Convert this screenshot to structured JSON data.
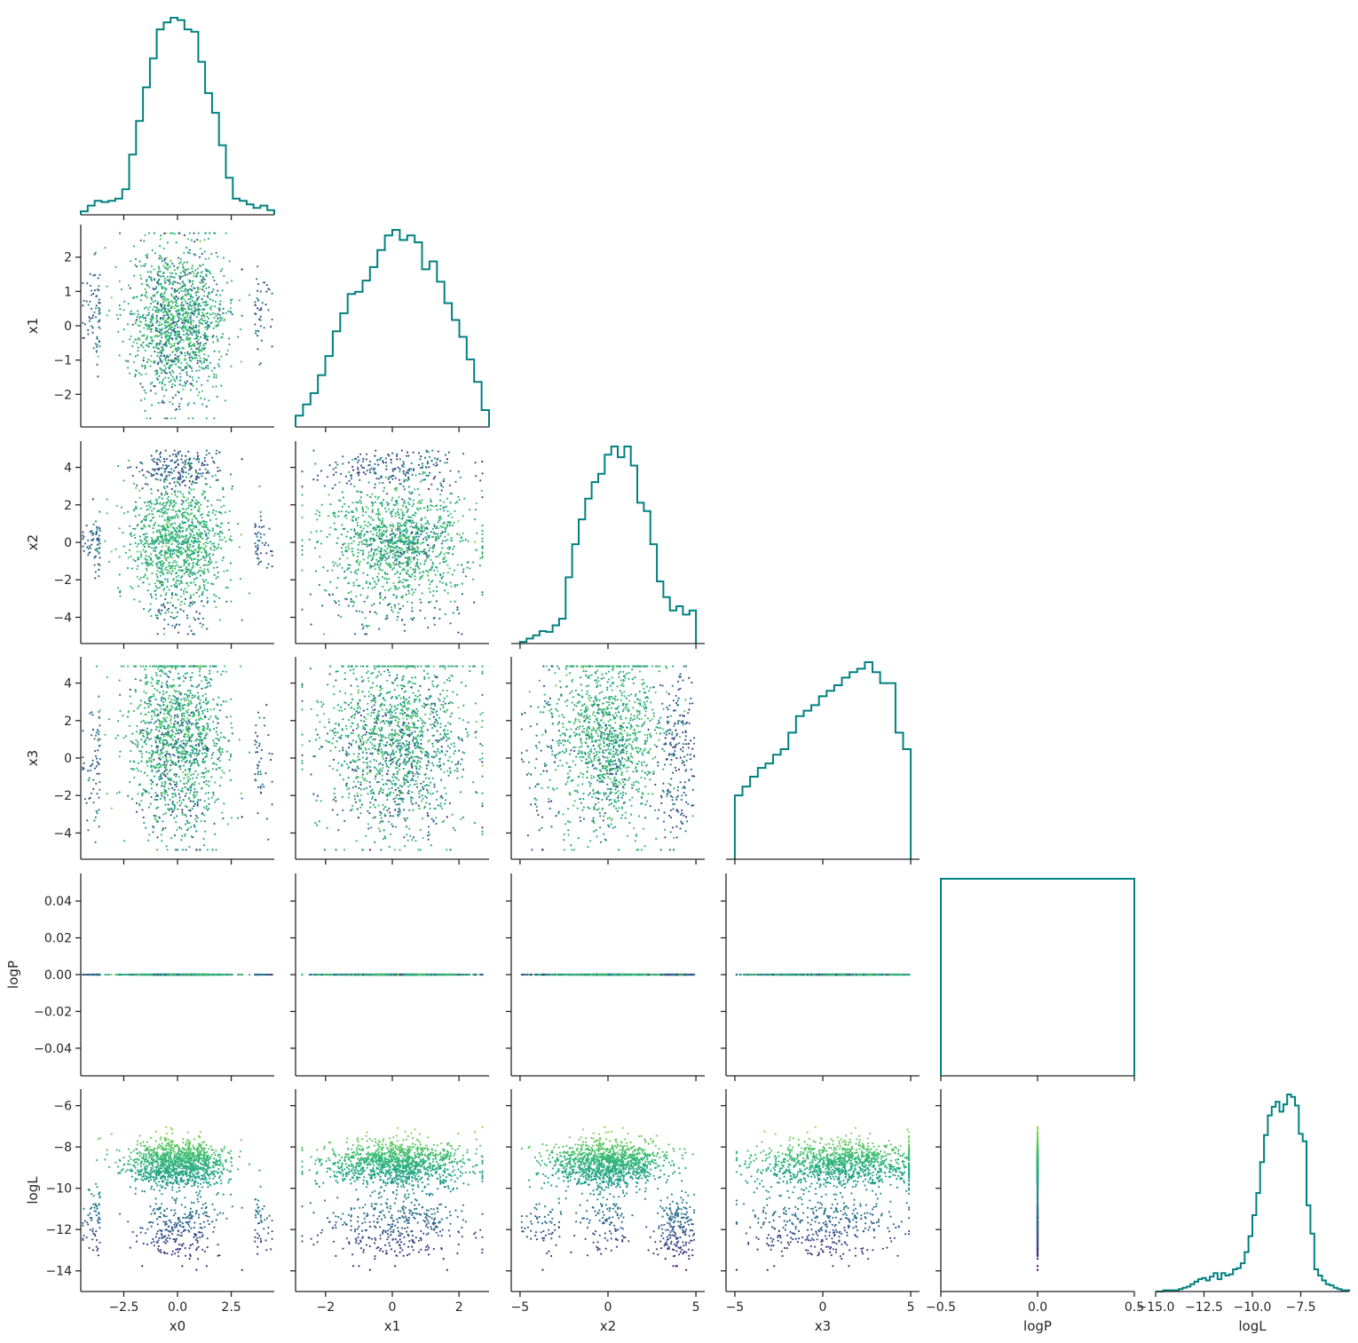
{
  "chart_data": {
    "type": "scatter",
    "title": "",
    "variables": [
      "x0",
      "x1",
      "x2",
      "x3",
      "logP",
      "logL"
    ],
    "axis_labels": {
      "x0": "x0",
      "x1": "x1",
      "x2": "x2",
      "x3": "x3",
      "logP": "logP",
      "logL": "logL"
    },
    "ranges": {
      "x0": [
        -4.5,
        4.5
      ],
      "x1": [
        -2.9,
        2.9
      ],
      "x2": [
        -5.5,
        5.5
      ],
      "x3": [
        -5.5,
        5.5
      ],
      "logP": [
        -0.5,
        0.5
      ],
      "logL": [
        -15.0,
        -5.0
      ]
    },
    "y_ranges": {
      "x1": [
        -2.95,
        2.95
      ],
      "x2": [
        -5.4,
        5.4
      ],
      "x3": [
        -5.4,
        5.4
      ],
      "logP": [
        -0.055,
        0.055
      ],
      "logL": [
        -15.0,
        -5.2
      ]
    },
    "x_ticks": {
      "x0": [
        {
          "v": -2.5,
          "t": "−2.5"
        },
        {
          "v": 0,
          "t": "0.0"
        },
        {
          "v": 2.5,
          "t": "2.5"
        }
      ],
      "x1": [
        {
          "v": -2,
          "t": "−2"
        },
        {
          "v": 0,
          "t": "0"
        },
        {
          "v": 2,
          "t": "2"
        }
      ],
      "x2": [
        {
          "v": -5,
          "t": "−5"
        },
        {
          "v": 0,
          "t": "0"
        },
        {
          "v": 5,
          "t": "5"
        }
      ],
      "x3": [
        {
          "v": -5,
          "t": "−5"
        },
        {
          "v": 0,
          "t": "0"
        },
        {
          "v": 5,
          "t": "5"
        }
      ],
      "logP": [
        {
          "v": -0.5,
          "t": "−0.5"
        },
        {
          "v": 0,
          "t": "0.0"
        },
        {
          "v": 0.5,
          "t": "0.5"
        }
      ],
      "logL": [
        {
          "v": -15,
          "t": "−15.0"
        },
        {
          "v": -12.5,
          "t": "−12.5"
        },
        {
          "v": -10,
          "t": "−10.0"
        },
        {
          "v": -7.5,
          "t": "−7.5"
        }
      ]
    },
    "y_ticks": {
      "x1": [
        {
          "v": 2,
          "t": "2"
        },
        {
          "v": 1,
          "t": "1"
        },
        {
          "v": 0,
          "t": "0"
        },
        {
          "v": -1,
          "t": "−1"
        },
        {
          "v": -2,
          "t": "−2"
        }
      ],
      "x2": [
        {
          "v": 4,
          "t": "4"
        },
        {
          "v": 2,
          "t": "2"
        },
        {
          "v": 0,
          "t": "0"
        },
        {
          "v": -2,
          "t": "−2"
        },
        {
          "v": -4,
          "t": "−4"
        }
      ],
      "x3": [
        {
          "v": 4,
          "t": "4"
        },
        {
          "v": 2,
          "t": "2"
        },
        {
          "v": 0,
          "t": "0"
        },
        {
          "v": -2,
          "t": "−2"
        },
        {
          "v": -4,
          "t": "−4"
        }
      ],
      "logP": [
        {
          "v": 0.04,
          "t": "0.04"
        },
        {
          "v": 0.02,
          "t": "0.02"
        },
        {
          "v": 0,
          "t": "0.00"
        },
        {
          "v": -0.02,
          "t": "−0.02"
        },
        {
          "v": -0.04,
          "t": "−0.04"
        }
      ],
      "logL": [
        {
          "v": -6,
          "t": "−6"
        },
        {
          "v": -8,
          "t": "−8"
        },
        {
          "v": -10,
          "t": "−10"
        },
        {
          "v": -12,
          "t": "−12"
        },
        {
          "v": -14,
          "t": "−14"
        }
      ]
    },
    "marginals": {
      "x0": {
        "range": [
          -4.5,
          4.5
        ],
        "counts": [
          3,
          8,
          12,
          11,
          12,
          14,
          22,
          52,
          81,
          110,
          135,
          160,
          166,
          170,
          168,
          160,
          158,
          132,
          105,
          88,
          60,
          32,
          14,
          12,
          9,
          6,
          8,
          4
        ]
      },
      "x1": {
        "range": [
          -2.9,
          2.9
        ],
        "counts": [
          10,
          20,
          30,
          46,
          63,
          85,
          101,
          118,
          120,
          130,
          142,
          157,
          170,
          175,
          166,
          170,
          164,
          140,
          147,
          129,
          110,
          95,
          80,
          60,
          40,
          15
        ]
      },
      "x2": {
        "range": [
          -5.0,
          5.0
        ],
        "counts": [
          2,
          6,
          10,
          15,
          14,
          22,
          30,
          80,
          120,
          150,
          175,
          195,
          205,
          228,
          238,
          225,
          238,
          215,
          170,
          160,
          120,
          75,
          56,
          40,
          45,
          35,
          40
        ]
      },
      "x3": {
        "range": [
          -5.0,
          5.0
        ],
        "counts": [
          58,
          66,
          75,
          83,
          87,
          95,
          100,
          115,
          130,
          135,
          140,
          148,
          153,
          158,
          165,
          170,
          173,
          179,
          170,
          160,
          160,
          115,
          100
        ]
      },
      "logP": {
        "range": [
          -0.5,
          0.5
        ],
        "counts": [
          1
        ]
      },
      "logL": {
        "range": [
          -15.0,
          -5.0
        ],
        "counts": [
          0,
          0,
          1,
          1,
          1,
          1,
          2,
          3,
          4,
          6,
          8,
          10,
          11,
          9,
          12,
          15,
          10,
          15,
          13,
          14,
          18,
          19,
          23,
          32,
          45,
          62,
          80,
          105,
          127,
          143,
          150,
          154,
          146,
          152,
          160,
          158,
          151,
          128,
          122,
          70,
          47,
          18,
          13,
          9,
          6,
          5,
          3,
          2,
          1,
          1
        ]
      }
    },
    "scatter_pairs": [
      {
        "x": "x0",
        "y": "x1"
      },
      {
        "x": "x0",
        "y": "x2"
      },
      {
        "x": "x1",
        "y": "x2"
      },
      {
        "x": "x0",
        "y": "x3"
      },
      {
        "x": "x1",
        "y": "x3"
      },
      {
        "x": "x2",
        "y": "x3"
      },
      {
        "x": "x0",
        "y": "logP"
      },
      {
        "x": "x1",
        "y": "logP"
      },
      {
        "x": "x2",
        "y": "logP"
      },
      {
        "x": "x3",
        "y": "logP"
      },
      {
        "x": "x0",
        "y": "logL"
      },
      {
        "x": "x1",
        "y": "logL"
      },
      {
        "x": "x2",
        "y": "logL"
      },
      {
        "x": "x3",
        "y": "logL"
      },
      {
        "x": "logP",
        "y": "logL"
      }
    ],
    "sample_count": 1500,
    "color_by": "logL",
    "colormap": "viridis",
    "histogram_style": "step",
    "histogram_color": "#008080",
    "grid": false
  }
}
